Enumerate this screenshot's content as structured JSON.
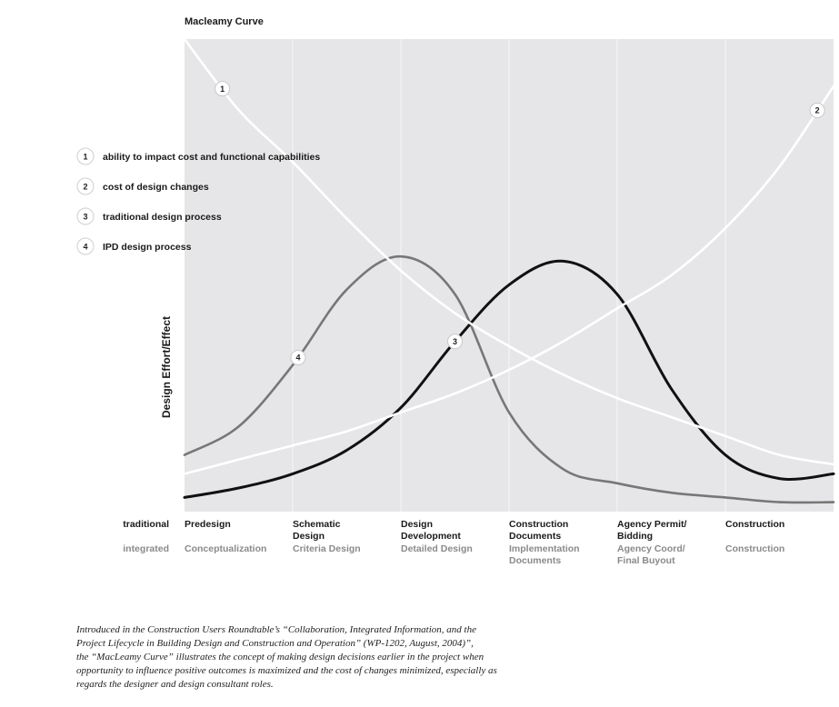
{
  "chart_data": {
    "type": "line",
    "title": "Macleamy Curve",
    "ylabel": "Design Effort/Effect",
    "x_rows": [
      "traditional",
      "integrated"
    ],
    "categories": [
      {
        "traditional": [
          "Predesign"
        ],
        "integrated": [
          "Conceptualization"
        ]
      },
      {
        "traditional": [
          "Schematic",
          "Design"
        ],
        "integrated": [
          "Criteria Design"
        ]
      },
      {
        "traditional": [
          "Design",
          "Development"
        ],
        "integrated": [
          "Detailed Design"
        ]
      },
      {
        "traditional": [
          "Construction",
          "Documents"
        ],
        "integrated": [
          "Implementation",
          "Documents"
        ]
      },
      {
        "traditional": [
          "Agency Permit/",
          "Bidding"
        ],
        "integrated": [
          "Agency Coord/",
          "Final Buyout"
        ]
      },
      {
        "traditional": [
          "Construction"
        ],
        "integrated": [
          "Construction"
        ]
      }
    ],
    "xlim": [
      0,
      6
    ],
    "ylim": [
      0,
      100
    ],
    "grid": true,
    "legend_position": "left",
    "series": [
      {
        "id": "1",
        "name": "ability to impact cost and functional capabilities",
        "color": "#ffffff",
        "x": [
          0,
          0.5,
          1,
          1.5,
          2,
          2.5,
          3,
          3.5,
          4,
          4.5,
          5,
          5.5,
          6
        ],
        "y": [
          100,
          85,
          74,
          62,
          51,
          42,
          35,
          29,
          24,
          20,
          16,
          12,
          10
        ]
      },
      {
        "id": "2",
        "name": "cost of design changes",
        "color": "#ffffff",
        "x": [
          0,
          0.5,
          1,
          1.5,
          2,
          2.5,
          3,
          3.5,
          4,
          4.5,
          5,
          5.5,
          6
        ],
        "y": [
          8,
          11,
          14,
          17,
          21,
          25,
          30,
          36,
          43,
          50,
          60,
          73,
          90
        ]
      },
      {
        "id": "3",
        "name": "traditional design process",
        "color": "#111111",
        "x": [
          0,
          0.5,
          1,
          1.5,
          2,
          2.5,
          3,
          3.5,
          4,
          4.5,
          5,
          5.5,
          6
        ],
        "y": [
          3,
          5,
          8,
          13,
          22,
          36,
          48,
          53,
          46,
          26,
          12,
          7,
          8
        ]
      },
      {
        "id": "4",
        "name": "IPD design process",
        "color": "#777777",
        "x": [
          0,
          0.5,
          1,
          1.5,
          2,
          2.5,
          3,
          3.5,
          4,
          4.5,
          5,
          5.5,
          6
        ],
        "y": [
          12,
          18,
          31,
          47,
          54,
          46,
          21,
          9,
          6,
          4,
          3,
          2,
          2
        ]
      }
    ],
    "curve_markers": [
      {
        "series": "1",
        "x": 0.35
      },
      {
        "series": "2",
        "x": 5.85
      },
      {
        "series": "3",
        "x": 2.5
      },
      {
        "series": "4",
        "x": 1.05
      }
    ]
  },
  "caption_lines": [
    "Introduced in the Construction Users Roundtable’s “Collaboration, Integrated Information, and the",
    "Project Lifecycle in Building Design and Construction and Operation” (WP-1202, August, 2004)”,",
    "the “MacLeamy Curve” illustrates the concept of making design decisions earlier in the project when",
    "opportunity to influence positive outcomes is maximized and the cost of changes minimized, especially as",
    "regards the designer and design consultant roles."
  ]
}
